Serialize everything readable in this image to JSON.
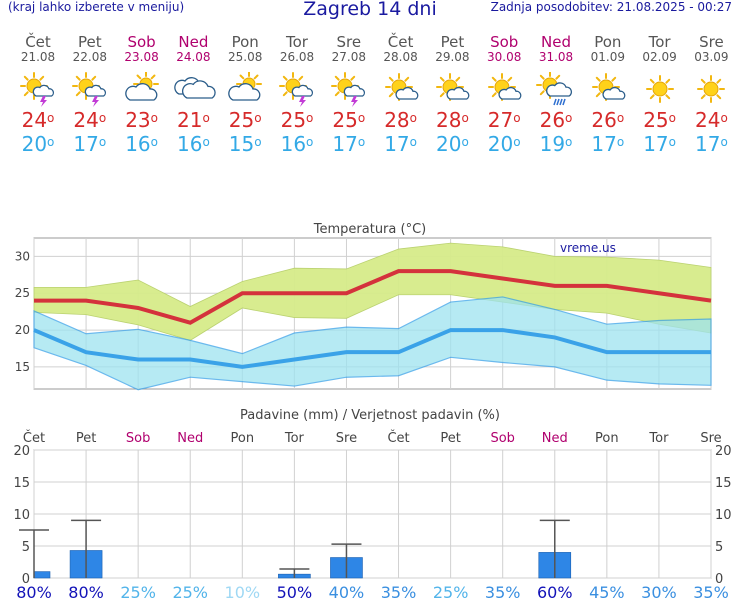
{
  "header": {
    "menu_hint": "(kraj lahko izberete v meniju)",
    "title": "Zagreb 14 dni",
    "updated": "Zadnja posodobitev: 21.08.2025 - 00:27"
  },
  "days": [
    {
      "name": "Čet",
      "date": "21.08",
      "weekend": false,
      "icon": "sun-cloud-thunder-icon",
      "hi": "24",
      "lo": "20"
    },
    {
      "name": "Pet",
      "date": "22.08",
      "weekend": false,
      "icon": "sun-cloud-thunder-icon",
      "hi": "24",
      "lo": "17"
    },
    {
      "name": "Sob",
      "date": "23.08",
      "weekend": true,
      "icon": "sun-behind-cloud-icon",
      "hi": "23",
      "lo": "16"
    },
    {
      "name": "Ned",
      "date": "24.08",
      "weekend": true,
      "icon": "cloudy-icon",
      "hi": "21",
      "lo": "16"
    },
    {
      "name": "Pon",
      "date": "25.08",
      "weekend": false,
      "icon": "sun-behind-cloud-icon",
      "hi": "25",
      "lo": "15"
    },
    {
      "name": "Tor",
      "date": "26.08",
      "weekend": false,
      "icon": "sun-cloud-thunder-icon",
      "hi": "25",
      "lo": "16"
    },
    {
      "name": "Sre",
      "date": "27.08",
      "weekend": false,
      "icon": "sun-cloud-thunder-icon",
      "hi": "25",
      "lo": "17"
    },
    {
      "name": "Čet",
      "date": "28.08",
      "weekend": false,
      "icon": "sun-small-cloud-icon",
      "hi": "28",
      "lo": "17"
    },
    {
      "name": "Pet",
      "date": "29.08",
      "weekend": false,
      "icon": "sun-small-cloud-icon",
      "hi": "28",
      "lo": "20"
    },
    {
      "name": "Sob",
      "date": "30.08",
      "weekend": true,
      "icon": "sun-small-cloud-icon",
      "hi": "27",
      "lo": "20"
    },
    {
      "name": "Ned",
      "date": "31.08",
      "weekend": true,
      "icon": "sun-cloud-rain-icon",
      "hi": "26",
      "lo": "19"
    },
    {
      "name": "Pon",
      "date": "01.09",
      "weekend": false,
      "icon": "sun-small-cloud-icon",
      "hi": "26",
      "lo": "17"
    },
    {
      "name": "Tor",
      "date": "02.09",
      "weekend": false,
      "icon": "sun-icon",
      "hi": "25",
      "lo": "17"
    },
    {
      "name": "Sre",
      "date": "03.09",
      "weekend": false,
      "icon": "sun-icon",
      "hi": "24",
      "lo": "17"
    }
  ],
  "colors": {
    "max_line": "#d4323c",
    "max_band": "#d6ec8a",
    "min_line": "#3aa2e8",
    "min_band": "#9ee3f0",
    "overlap": "#7fd08a",
    "bar": "#2e86e6",
    "weekend": "#b0006e",
    "hi_text": "#d62a2a",
    "lo_text": "#33a9e6"
  },
  "chart_data": [
    {
      "type": "line",
      "title": "Temperatura (°C)",
      "watermark": "vreme.us",
      "x": [
        "21.08",
        "22.08",
        "23.08",
        "24.08",
        "25.08",
        "26.08",
        "27.08",
        "28.08",
        "29.08",
        "30.08",
        "31.08",
        "01.09",
        "02.09",
        "03.09"
      ],
      "yticks": [
        15,
        20,
        25,
        30
      ],
      "ylim": [
        12,
        32.5
      ],
      "series": [
        {
          "values": [
            24,
            24,
            23,
            21,
            25,
            25,
            25,
            28,
            28,
            27,
            26,
            26,
            25,
            24
          ]
        },
        {
          "values": [
            25.8,
            25.8,
            26.8,
            23.2,
            26.6,
            28.4,
            28.3,
            31.0,
            31.8,
            31.3,
            30.0,
            29.9,
            29.5,
            28.5
          ]
        },
        {
          "values": [
            22.4,
            22.1,
            20.7,
            18.6,
            23.0,
            21.7,
            21.6,
            24.8,
            24.8,
            23.8,
            22.8,
            22.3,
            20.8,
            19.6
          ]
        },
        {
          "values": [
            20,
            17,
            16,
            16,
            15,
            16,
            17,
            17,
            20,
            20,
            19,
            17,
            17,
            17
          ]
        },
        {
          "values": [
            22.6,
            19.5,
            20.1,
            18.6,
            16.8,
            19.6,
            20.4,
            20.2,
            23.8,
            24.5,
            22.8,
            20.8,
            21.3,
            21.5
          ]
        },
        {
          "values": [
            17.6,
            15.2,
            11.9,
            13.6,
            13.0,
            12.4,
            13.6,
            13.8,
            16.3,
            15.6,
            15.0,
            13.2,
            12.7,
            12.5
          ]
        }
      ],
      "grid": true
    },
    {
      "type": "bar",
      "title": "Padavine (mm) / Verjetnost padavin (%)",
      "categories": [
        "Čet",
        "Pet",
        "Sob",
        "Ned",
        "Pon",
        "Tor",
        "Sre",
        "Čet",
        "Pet",
        "Sob",
        "Ned",
        "Pon",
        "Tor",
        "Sre"
      ],
      "values": [
        1.0,
        4.3,
        0,
        0,
        0,
        0.6,
        3.2,
        0,
        0,
        0,
        4.0,
        0,
        0,
        0
      ],
      "error_high": [
        7.5,
        9.0,
        null,
        null,
        null,
        1.4,
        5.3,
        null,
        null,
        null,
        9.0,
        null,
        null,
        null
      ],
      "probability": [
        "80%",
        "80%",
        "25%",
        "25%",
        "10%",
        "50%",
        "40%",
        "35%",
        "25%",
        "35%",
        "60%",
        "45%",
        "30%",
        "35%"
      ],
      "yticks": [
        0,
        5,
        10,
        15,
        20
      ],
      "ylim": [
        0,
        20
      ],
      "grid": true
    }
  ]
}
